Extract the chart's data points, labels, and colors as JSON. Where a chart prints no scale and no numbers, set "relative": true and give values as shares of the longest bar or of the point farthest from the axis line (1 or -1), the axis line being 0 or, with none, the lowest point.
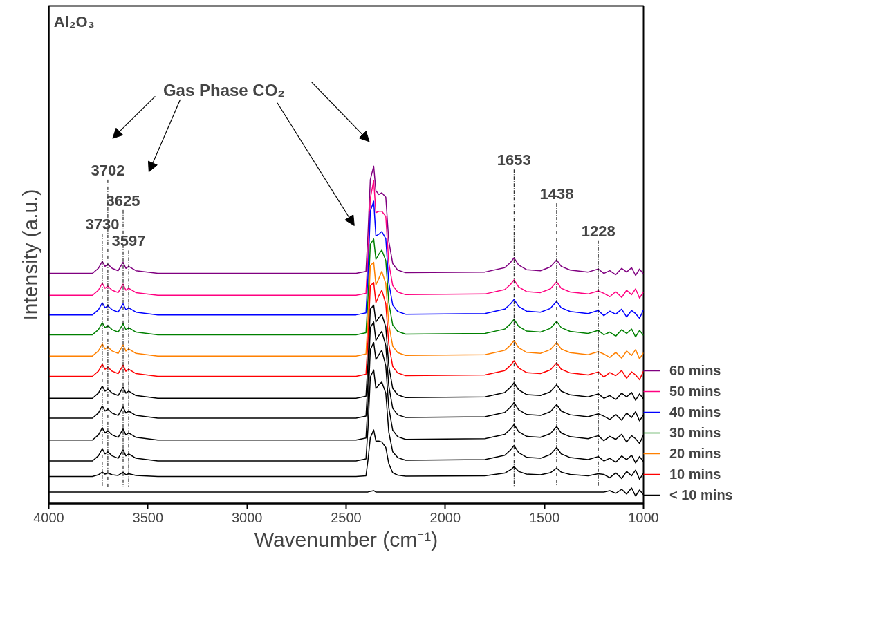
{
  "chart_data": {
    "type": "line",
    "title": "Al₂O₃",
    "xlabel": "Wavenumber (cm⁻¹)",
    "ylabel": "Intensity (a.u.)",
    "relative": true,
    "xlim": [
      4000,
      1000
    ],
    "xticks": [
      4000,
      3500,
      3000,
      2500,
      2000,
      1500,
      1000
    ],
    "grid": false,
    "legend": "right",
    "marker": "none",
    "line_style": "solid",
    "x": [
      4000,
      3780,
      3750,
      3730,
      3716,
      3702,
      3680,
      3650,
      3625,
      3611,
      3597,
      3560,
      3450,
      2450,
      2400,
      2390,
      2378,
      2361,
      2350,
      2335,
      2320,
      2300,
      2285,
      2265,
      2240,
      2200,
      1800,
      1700,
      1670,
      1653,
      1630,
      1590,
      1520,
      1470,
      1438,
      1415,
      1370,
      1280,
      1228,
      1200,
      1170,
      1140,
      1110,
      1085,
      1060,
      1040,
      1020,
      1000
    ],
    "annotations": [
      "Gas Phase CO₂"
    ],
    "ref_lines": [
      {
        "axis": "x",
        "value": 3730,
        "label": "3730",
        "line_style": "dashed"
      },
      {
        "axis": "x",
        "value": 3702,
        "label": "3702",
        "line_style": "dashed"
      },
      {
        "axis": "x",
        "value": 3625,
        "label": "3625",
        "line_style": "dashed"
      },
      {
        "axis": "x",
        "value": 3597,
        "label": "3597",
        "line_style": "dashed"
      },
      {
        "axis": "x",
        "value": 1653,
        "label": "1653",
        "line_style": "dashed"
      },
      {
        "axis": "x",
        "value": 1438,
        "label": "1438",
        "line_style": "dashed"
      },
      {
        "axis": "x",
        "value": 1228,
        "label": "1228",
        "line_style": "dashed"
      }
    ],
    "series": [
      {
        "name": "60 mins",
        "color": "#800080",
        "values": [
          0.682,
          0.682,
          0.697,
          0.718,
          0.703,
          0.709,
          0.697,
          0.69,
          0.715,
          0.697,
          0.703,
          0.69,
          0.682,
          0.682,
          0.688,
          0.797,
          0.96,
          1.0,
          0.927,
          0.916,
          0.921,
          0.908,
          0.778,
          0.711,
          0.692,
          0.684,
          0.686,
          0.699,
          0.715,
          0.728,
          0.707,
          0.693,
          0.69,
          0.701,
          0.722,
          0.703,
          0.692,
          0.686,
          0.695,
          0.682,
          0.69,
          0.678,
          0.697,
          0.686,
          0.699,
          0.676,
          0.695,
          0.68
        ]
      },
      {
        "name": "50 mins",
        "color": "#ff0080",
        "values": [
          0.617,
          0.617,
          0.632,
          0.653,
          0.638,
          0.644,
          0.632,
          0.625,
          0.65,
          0.632,
          0.638,
          0.625,
          0.617,
          0.617,
          0.623,
          0.732,
          0.904,
          0.958,
          0.862,
          0.866,
          0.866,
          0.851,
          0.713,
          0.646,
          0.627,
          0.619,
          0.621,
          0.634,
          0.65,
          0.663,
          0.642,
          0.628,
          0.625,
          0.636,
          0.657,
          0.638,
          0.627,
          0.621,
          0.63,
          0.623,
          0.613,
          0.628,
          0.611,
          0.632,
          0.619,
          0.636,
          0.609,
          0.627
        ]
      },
      {
        "name": "40 mins",
        "color": "#0000ff",
        "values": [
          0.559,
          0.559,
          0.574,
          0.595,
          0.58,
          0.586,
          0.574,
          0.567,
          0.592,
          0.574,
          0.58,
          0.567,
          0.559,
          0.559,
          0.565,
          0.674,
          0.866,
          0.896,
          0.793,
          0.798,
          0.806,
          0.785,
          0.655,
          0.588,
          0.569,
          0.561,
          0.563,
          0.576,
          0.592,
          0.605,
          0.584,
          0.57,
          0.567,
          0.578,
          0.599,
          0.58,
          0.569,
          0.563,
          0.572,
          0.557,
          0.57,
          0.561,
          0.576,
          0.553,
          0.572,
          0.563,
          0.549,
          0.574
        ]
      },
      {
        "name": "30 mins",
        "color": "#008000",
        "values": [
          0.5,
          0.5,
          0.515,
          0.536,
          0.521,
          0.527,
          0.515,
          0.508,
          0.533,
          0.515,
          0.521,
          0.508,
          0.5,
          0.5,
          0.506,
          0.605,
          0.768,
          0.784,
          0.724,
          0.739,
          0.751,
          0.72,
          0.596,
          0.529,
          0.51,
          0.502,
          0.504,
          0.517,
          0.533,
          0.546,
          0.525,
          0.511,
          0.508,
          0.519,
          0.54,
          0.521,
          0.51,
          0.504,
          0.513,
          0.5,
          0.508,
          0.496,
          0.515,
          0.504,
          0.517,
          0.494,
          0.513,
          0.498
        ]
      },
      {
        "name": "20 mins",
        "color": "#ff8000",
        "values": [
          0.437,
          0.437,
          0.452,
          0.473,
          0.458,
          0.464,
          0.452,
          0.445,
          0.47,
          0.452,
          0.458,
          0.445,
          0.437,
          0.437,
          0.443,
          0.542,
          0.705,
          0.715,
          0.648,
          0.667,
          0.688,
          0.652,
          0.533,
          0.466,
          0.447,
          0.439,
          0.441,
          0.454,
          0.47,
          0.483,
          0.462,
          0.448,
          0.445,
          0.456,
          0.477,
          0.458,
          0.447,
          0.441,
          0.45,
          0.443,
          0.433,
          0.448,
          0.431,
          0.452,
          0.439,
          0.456,
          0.429,
          0.447
        ]
      },
      {
        "name": "10 mins",
        "color": "#ff0000",
        "values": [
          0.377,
          0.377,
          0.392,
          0.413,
          0.398,
          0.404,
          0.392,
          0.385,
          0.41,
          0.392,
          0.398,
          0.385,
          0.377,
          0.377,
          0.383,
          0.482,
          0.645,
          0.655,
          0.595,
          0.616,
          0.632,
          0.592,
          0.473,
          0.406,
          0.387,
          0.379,
          0.381,
          0.394,
          0.41,
          0.423,
          0.402,
          0.388,
          0.385,
          0.396,
          0.417,
          0.398,
          0.387,
          0.381,
          0.39,
          0.375,
          0.388,
          0.379,
          0.394,
          0.371,
          0.39,
          0.381,
          0.367,
          0.392
        ]
      },
      {
        "name": "< 10 mins",
        "color": "#000000",
        "values": [
          0.312,
          0.312,
          0.327,
          0.348,
          0.333,
          0.339,
          0.327,
          0.32,
          0.345,
          0.327,
          0.333,
          0.32,
          0.312,
          0.312,
          0.318,
          0.417,
          0.576,
          0.588,
          0.538,
          0.551,
          0.561,
          0.523,
          0.408,
          0.341,
          0.322,
          0.314,
          0.316,
          0.329,
          0.345,
          0.358,
          0.337,
          0.323,
          0.32,
          0.331,
          0.352,
          0.333,
          0.322,
          0.316,
          0.325,
          0.312,
          0.32,
          0.308,
          0.327,
          0.316,
          0.329,
          0.306,
          0.325,
          0.31
        ]
      },
      {
        "color": "#000000",
        "values": [
          0.253,
          0.253,
          0.268,
          0.289,
          0.274,
          0.28,
          0.268,
          0.261,
          0.286,
          0.268,
          0.274,
          0.261,
          0.253,
          0.253,
          0.259,
          0.358,
          0.521,
          0.538,
          0.483,
          0.498,
          0.51,
          0.468,
          0.349,
          0.282,
          0.263,
          0.255,
          0.257,
          0.27,
          0.286,
          0.299,
          0.278,
          0.264,
          0.261,
          0.272,
          0.293,
          0.274,
          0.263,
          0.257,
          0.266,
          0.259,
          0.249,
          0.264,
          0.247,
          0.268,
          0.255,
          0.272,
          0.245,
          0.263
        ]
      },
      {
        "color": "#000000",
        "values": [
          0.188,
          0.188,
          0.203,
          0.224,
          0.209,
          0.215,
          0.203,
          0.196,
          0.221,
          0.203,
          0.209,
          0.196,
          0.188,
          0.188,
          0.194,
          0.293,
          0.456,
          0.477,
          0.427,
          0.441,
          0.454,
          0.408,
          0.284,
          0.217,
          0.198,
          0.19,
          0.192,
          0.205,
          0.221,
          0.234,
          0.213,
          0.199,
          0.196,
          0.207,
          0.228,
          0.209,
          0.198,
          0.192,
          0.201,
          0.186,
          0.199,
          0.19,
          0.205,
          0.182,
          0.201,
          0.192,
          0.178,
          0.203
        ]
      },
      {
        "color": "#000000",
        "values": [
          0.126,
          0.126,
          0.141,
          0.162,
          0.147,
          0.153,
          0.141,
          0.134,
          0.159,
          0.141,
          0.147,
          0.134,
          0.126,
          0.126,
          0.132,
          0.222,
          0.375,
          0.396,
          0.341,
          0.352,
          0.36,
          0.327,
          0.212,
          0.153,
          0.136,
          0.128,
          0.13,
          0.143,
          0.159,
          0.172,
          0.151,
          0.137,
          0.134,
          0.145,
          0.166,
          0.147,
          0.136,
          0.13,
          0.139,
          0.126,
          0.134,
          0.122,
          0.141,
          0.13,
          0.143,
          0.12,
          0.139,
          0.124
        ]
      },
      {
        "color": "#000000",
        "values": [
          0.08,
          0.08,
          0.085,
          0.093,
          0.087,
          0.09,
          0.085,
          0.083,
          0.093,
          0.085,
          0.088,
          0.083,
          0.08,
          0.08,
          0.082,
          0.128,
          0.195,
          0.218,
          0.185,
          0.185,
          0.182,
          0.166,
          0.118,
          0.091,
          0.084,
          0.081,
          0.082,
          0.09,
          0.1,
          0.109,
          0.095,
          0.087,
          0.085,
          0.091,
          0.105,
          0.093,
          0.086,
          0.082,
          0.088,
          0.086,
          0.076,
          0.091,
          0.074,
          0.095,
          0.082,
          0.099,
          0.072,
          0.09
        ]
      },
      {
        "color": "#000000",
        "values": [
          0.034,
          0.034,
          0.034,
          0.034,
          0.034,
          0.034,
          0.034,
          0.034,
          0.034,
          0.034,
          0.034,
          0.034,
          0.034,
          0.034,
          0.034,
          0.034,
          0.036,
          0.038,
          0.034,
          0.034,
          0.034,
          0.034,
          0.034,
          0.034,
          0.034,
          0.034,
          0.034,
          0.034,
          0.034,
          0.034,
          0.034,
          0.034,
          0.034,
          0.034,
          0.034,
          0.034,
          0.034,
          0.034,
          0.034,
          0.034,
          0.038,
          0.03,
          0.042,
          0.028,
          0.046,
          0.022,
          0.04,
          0.026
        ]
      }
    ]
  }
}
